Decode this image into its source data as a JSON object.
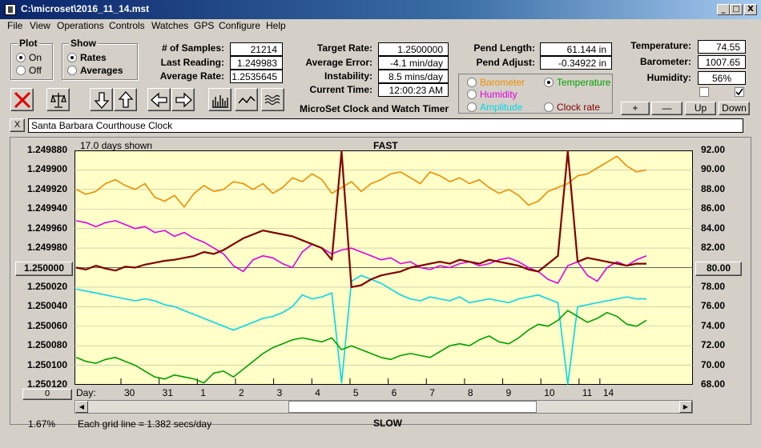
{
  "window": {
    "title": "C:\\microset\\2016_11_14.mst"
  },
  "titlebar_buttons": {
    "minimize": "_",
    "maximize": "□",
    "close": "X"
  },
  "menu": [
    "File",
    "View",
    "Operations",
    "Controls",
    "Watches",
    "GPS",
    "Configure",
    "Help"
  ],
  "plot_group": {
    "title": "Plot",
    "options": [
      "On",
      "Off"
    ],
    "selected": "On"
  },
  "show_group": {
    "title": "Show",
    "options": [
      "Rates",
      "Averages"
    ],
    "selected": "Rates"
  },
  "stats": [
    {
      "label": "# of Samples:",
      "value": "21214"
    },
    {
      "label": "Last Reading:",
      "value": "1.249983"
    },
    {
      "label": "Average Rate:",
      "value": "1.2535645"
    }
  ],
  "rates": [
    {
      "label": "Target Rate:",
      "value": "1.2500000"
    },
    {
      "label": "Average Error:",
      "value": "-4.1 min/day"
    },
    {
      "label": "Instability:",
      "value": "8.5 mins/day"
    },
    {
      "label": "Current Time:",
      "value": "12:00:23 AM"
    }
  ],
  "pendulum": [
    {
      "label": "Pend Length:",
      "value": "61.144 in"
    },
    {
      "label": "Pend Adjust:",
      "value": "-0.34922 in"
    }
  ],
  "environment": [
    {
      "label": "Temperature:",
      "value": "74.55"
    },
    {
      "label": "Barometer:",
      "value": "1007.65"
    },
    {
      "label": "Humidity:",
      "value": "56%"
    }
  ],
  "checkboxes": [
    {
      "checked": false
    },
    {
      "checked": true
    }
  ],
  "adjust_buttons": [
    "+",
    "—",
    "Up",
    "Down"
  ],
  "app_caption": "MicroSet Clock and Watch Timer",
  "parameters": {
    "options": [
      {
        "label": "Barometer",
        "color": "#f08c00"
      },
      {
        "label": "Temperature",
        "color": "#00a000"
      },
      {
        "label": "Humidity",
        "color": "#e000e0"
      },
      {
        "label": "Amplitude",
        "color": "#00d8e8"
      },
      {
        "label": "Clock rate",
        "color": "#800000"
      }
    ],
    "selected": "Temperature"
  },
  "watch": {
    "close_label": "X",
    "name": "Santa Barbara Courthouse Clock"
  },
  "chart": {
    "days_shown": "17.0 days shown",
    "top_label": "FAST",
    "bottom_label": "SLOW",
    "left_axis": [
      "1.249880",
      "1.249900",
      "1.249920",
      "1.249940",
      "1.249960",
      "1.249980",
      "1.250000",
      "1.250020",
      "1.250040",
      "1.250060",
      "1.250080",
      "1.250100",
      "1.250120"
    ],
    "right_axis": [
      "92.00",
      "90.00",
      "88.00",
      "86.00",
      "84.00",
      "82.00",
      "80.00",
      "78.00",
      "76.00",
      "74.00",
      "72.00",
      "70.00",
      "68.00"
    ],
    "center_left_button": "1.250000",
    "center_right_button": "80.00",
    "day_label": "Day:",
    "day_ticks": [
      "30",
      "31",
      "1",
      "2",
      "3",
      "4",
      "5",
      "6",
      "7",
      "8",
      "9",
      "10",
      "11",
      "14"
    ],
    "zoom_button": "0",
    "percent": "1.67%",
    "grid_note": "Each grid line = 1.382 secs/day",
    "scroll_position": 0.585
  },
  "chart_data": {
    "type": "line",
    "xlabel": "Day:",
    "x_ticks": [
      "30",
      "31",
      "1",
      "2",
      "3",
      "4",
      "5",
      "6",
      "7",
      "8",
      "9",
      "10",
      "11",
      "14"
    ],
    "y_left_range": [
      1.24988,
      1.25012
    ],
    "y_right_range": [
      68,
      92
    ],
    "series": [
      {
        "name": "Barometer",
        "color": "#f08c00",
        "axis": "right",
        "values": [
          88.0,
          87.5,
          87.8,
          88.6,
          89.0,
          88.4,
          88.0,
          88.6,
          87.2,
          86.8,
          87.4,
          86.2,
          87.6,
          88.4,
          87.8,
          88.0,
          88.8,
          88.6,
          88.0,
          88.6,
          87.6,
          88.2,
          89.2,
          88.8,
          89.6,
          89.0,
          87.6,
          88.2,
          88.8,
          87.8,
          88.6,
          89.0,
          89.6,
          89.8,
          89.2,
          88.6,
          89.8,
          89.4,
          88.8,
          89.2,
          88.6,
          89.0,
          88.2,
          87.6,
          88.0,
          87.4,
          86.4,
          86.8,
          87.8,
          88.2,
          88.6,
          89.4,
          89.6,
          90.2,
          90.8,
          91.4,
          90.4,
          89.8,
          90.0
        ]
      },
      {
        "name": "Humidity",
        "color": "#e000e0",
        "axis": "right",
        "values": [
          84.8,
          84.6,
          84.2,
          84.6,
          84.8,
          84.4,
          84.0,
          84.2,
          83.6,
          83.8,
          83.2,
          83.6,
          83.0,
          82.6,
          82.0,
          81.4,
          80.2,
          79.6,
          80.8,
          81.2,
          81.0,
          80.4,
          80.0,
          81.6,
          82.4,
          82.0,
          81.4,
          81.8,
          82.0,
          81.6,
          81.2,
          80.8,
          81.0,
          80.4,
          80.6,
          80.0,
          79.8,
          80.2,
          80.0,
          80.4,
          80.6,
          80.2,
          80.4,
          80.8,
          81.0,
          80.6,
          80.0,
          79.6,
          78.8,
          78.4,
          80.2,
          80.6,
          79.2,
          78.6,
          80.0,
          80.6,
          80.2,
          80.8,
          81.2
        ]
      },
      {
        "name": "Amplitude",
        "color": "#00d8e8",
        "axis": "right",
        "values": [
          77.8,
          77.6,
          77.4,
          77.2,
          77.0,
          76.8,
          76.6,
          76.8,
          76.6,
          76.2,
          76.0,
          75.6,
          75.2,
          74.8,
          74.4,
          74.0,
          73.6,
          74.0,
          74.4,
          74.8,
          75.0,
          75.4,
          76.0,
          77.2,
          76.8,
          77.0,
          77.4,
          68.2,
          78.6,
          79.2,
          78.8,
          78.4,
          77.8,
          77.2,
          76.8,
          76.6,
          77.0,
          76.8,
          76.6,
          77.0,
          76.4,
          76.6,
          76.8,
          76.6,
          76.4,
          76.8,
          77.0,
          77.2,
          76.8,
          76.4,
          68.0,
          76.0,
          76.2,
          76.4,
          76.6,
          76.8,
          77.0,
          76.8,
          76.8
        ]
      },
      {
        "name": "Temperature",
        "color": "#00a000",
        "axis": "right",
        "values": [
          70.8,
          70.4,
          70.2,
          70.6,
          70.8,
          70.4,
          70.0,
          69.4,
          68.8,
          68.6,
          69.0,
          68.8,
          68.6,
          68.2,
          69.2,
          69.4,
          68.8,
          69.6,
          70.4,
          71.2,
          71.8,
          72.2,
          72.6,
          72.8,
          72.6,
          72.4,
          72.8,
          71.6,
          72.0,
          71.6,
          71.2,
          70.8,
          70.6,
          71.0,
          71.2,
          71.0,
          70.8,
          71.4,
          72.0,
          72.2,
          72.0,
          72.6,
          73.0,
          72.4,
          72.2,
          72.8,
          73.6,
          74.2,
          74.0,
          74.6,
          75.6,
          75.0,
          74.4,
          74.8,
          75.4,
          75.0,
          74.2,
          74.0,
          74.6
        ]
      },
      {
        "name": "Clock rate",
        "color": "#800000",
        "axis": "left",
        "values": [
          1.25,
          1.250002,
          1.249998,
          1.250001,
          1.250003,
          1.249999,
          1.25,
          1.249997,
          1.249995,
          1.249993,
          1.249992,
          1.24999,
          1.249988,
          1.249984,
          1.249986,
          1.249982,
          1.249976,
          1.24997,
          1.249966,
          1.249962,
          1.249964,
          1.249966,
          1.249968,
          1.249972,
          1.249976,
          1.24998,
          1.249992,
          1.24988,
          1.25002,
          1.250018,
          1.250012,
          1.250008,
          1.250006,
          1.250004,
          1.25,
          1.249998,
          1.249996,
          1.249994,
          1.249996,
          1.249992,
          1.249994,
          1.249996,
          1.249992,
          1.249994,
          1.249996,
          1.249998,
          1.250002,
          1.250004,
          1.249996,
          1.249988,
          1.24988,
          1.249994,
          1.24999,
          1.249992,
          1.249994,
          1.249996,
          1.249998,
          1.249996,
          1.249996
        ]
      }
    ]
  }
}
